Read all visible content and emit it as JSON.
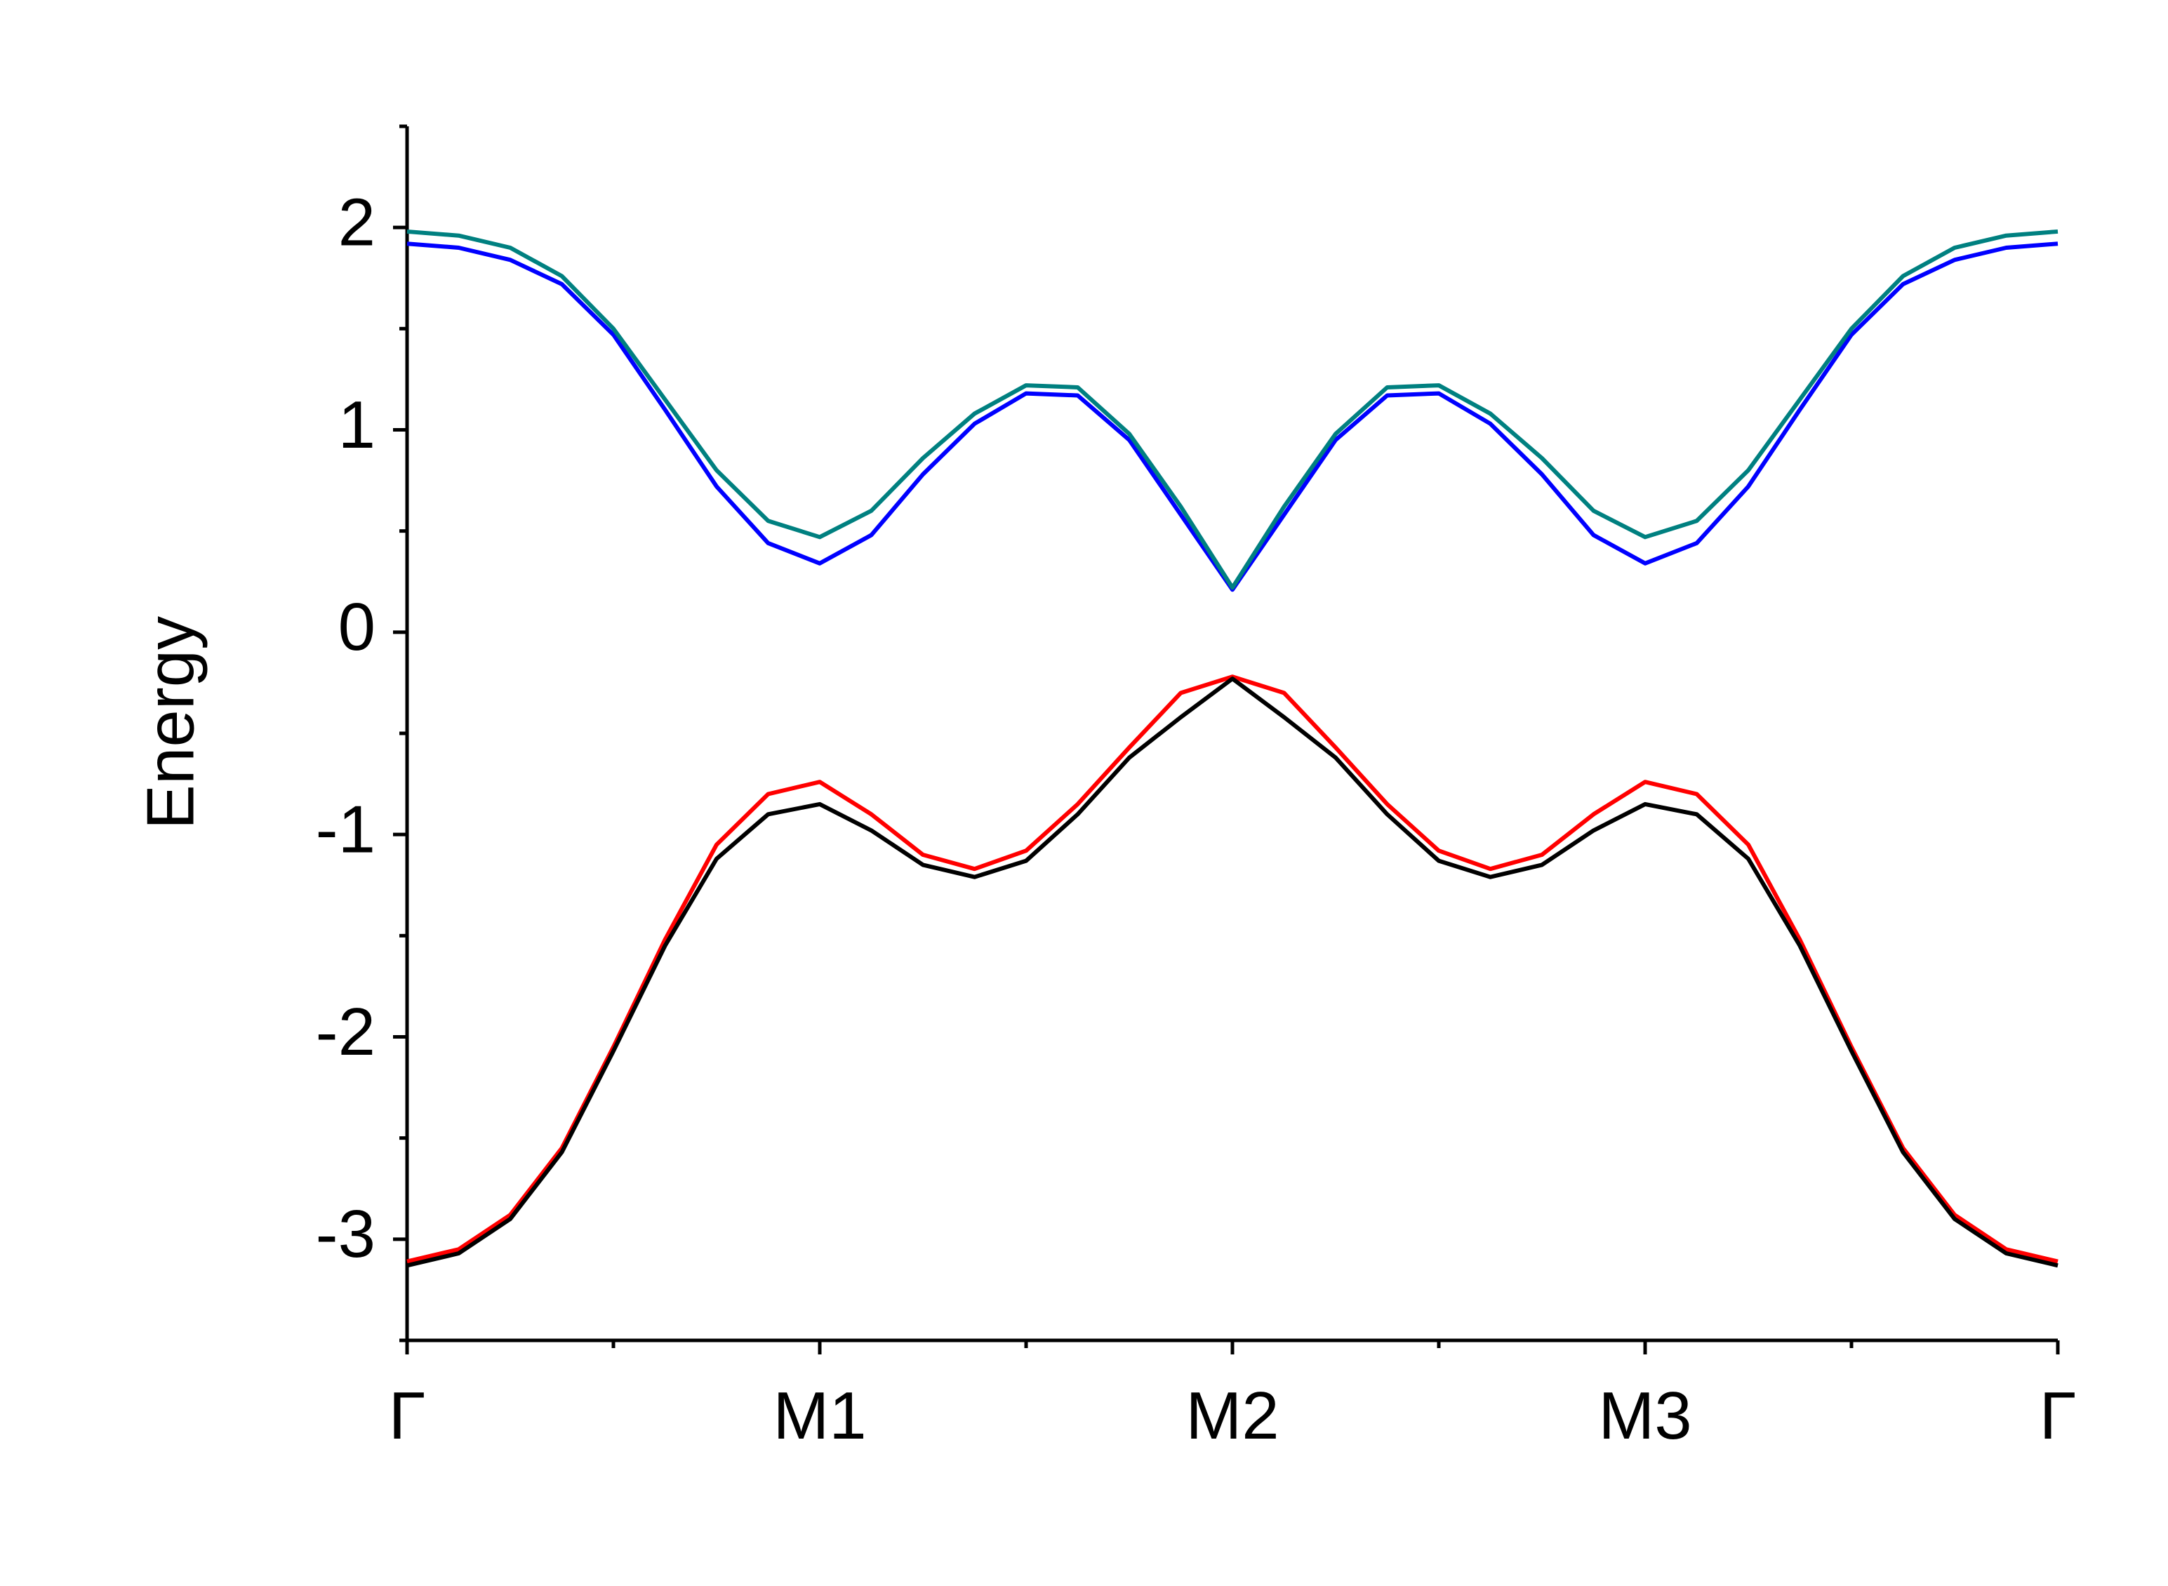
{
  "chart_data": {
    "type": "line",
    "ylabel": "Energy",
    "x": [
      0,
      0.125,
      0.25,
      0.375,
      0.5,
      0.625,
      0.75,
      0.875,
      1,
      1.125,
      1.25,
      1.375,
      1.5,
      1.625,
      1.75,
      1.875,
      2,
      2.125,
      2.25,
      2.375,
      2.5,
      2.625,
      2.75,
      2.875,
      3,
      3.125,
      3.25,
      3.375,
      3.5,
      3.625,
      3.75,
      3.875,
      4
    ],
    "series": [
      {
        "color": "#008080",
        "values": [
          1.98,
          1.96,
          1.9,
          1.76,
          1.5,
          1.15,
          0.8,
          0.55,
          0.47,
          0.6,
          0.86,
          1.08,
          1.22,
          1.21,
          0.98,
          0.62,
          0.22,
          0.62,
          0.98,
          1.21,
          1.22,
          1.08,
          0.86,
          0.6,
          0.47,
          0.55,
          0.8,
          1.15,
          1.5,
          1.76,
          1.9,
          1.96,
          1.98
        ]
      },
      {
        "color": "#0000ff",
        "values": [
          1.92,
          1.9,
          1.84,
          1.72,
          1.47,
          1.1,
          0.72,
          0.44,
          0.34,
          0.48,
          0.78,
          1.03,
          1.18,
          1.17,
          0.95,
          0.58,
          0.21,
          0.58,
          0.95,
          1.17,
          1.18,
          1.03,
          0.78,
          0.48,
          0.34,
          0.44,
          0.72,
          1.1,
          1.47,
          1.72,
          1.84,
          1.9,
          1.92
        ]
      },
      {
        "color": "#000000",
        "values": [
          -3.13,
          -3.07,
          -2.9,
          -2.57,
          -2.07,
          -1.55,
          -1.12,
          -0.9,
          -0.85,
          -0.98,
          -1.15,
          -1.21,
          -1.13,
          -0.9,
          -0.62,
          -0.42,
          -0.23,
          -0.42,
          -0.62,
          -0.9,
          -1.13,
          -1.21,
          -1.15,
          -0.98,
          -0.85,
          -0.9,
          -1.12,
          -1.55,
          -2.07,
          -2.57,
          -2.9,
          -3.07,
          -3.13
        ]
      },
      {
        "color": "#ff0000",
        "values": [
          -3.11,
          -3.05,
          -2.88,
          -2.55,
          -2.05,
          -1.52,
          -1.05,
          -0.8,
          -0.74,
          -0.9,
          -1.1,
          -1.17,
          -1.08,
          -0.85,
          -0.57,
          -0.3,
          -0.22,
          -0.3,
          -0.57,
          -0.85,
          -1.08,
          -1.17,
          -1.1,
          -0.9,
          -0.74,
          -0.8,
          -1.05,
          -1.52,
          -2.05,
          -2.55,
          -2.88,
          -3.05,
          -3.11
        ]
      }
    ],
    "xlim": [
      0,
      4
    ],
    "xticks": [
      {
        "value": 0,
        "label": "Γ"
      },
      {
        "value": 1,
        "label": "M1"
      },
      {
        "value": 2,
        "label": "M2"
      },
      {
        "value": 3,
        "label": "M3"
      },
      {
        "value": 4,
        "label": "Γ"
      }
    ],
    "xminorticks": [
      0.5,
      1.5,
      2.5,
      3.5
    ],
    "ylim": [
      -3.5,
      2.5
    ],
    "yticks": [
      -3,
      -2,
      -1,
      0,
      1,
      2
    ],
    "yminorticks": [
      -3.5,
      -2.5,
      -1.5,
      -0.5,
      0.5,
      1.5,
      2.5
    ],
    "grid": false
  }
}
